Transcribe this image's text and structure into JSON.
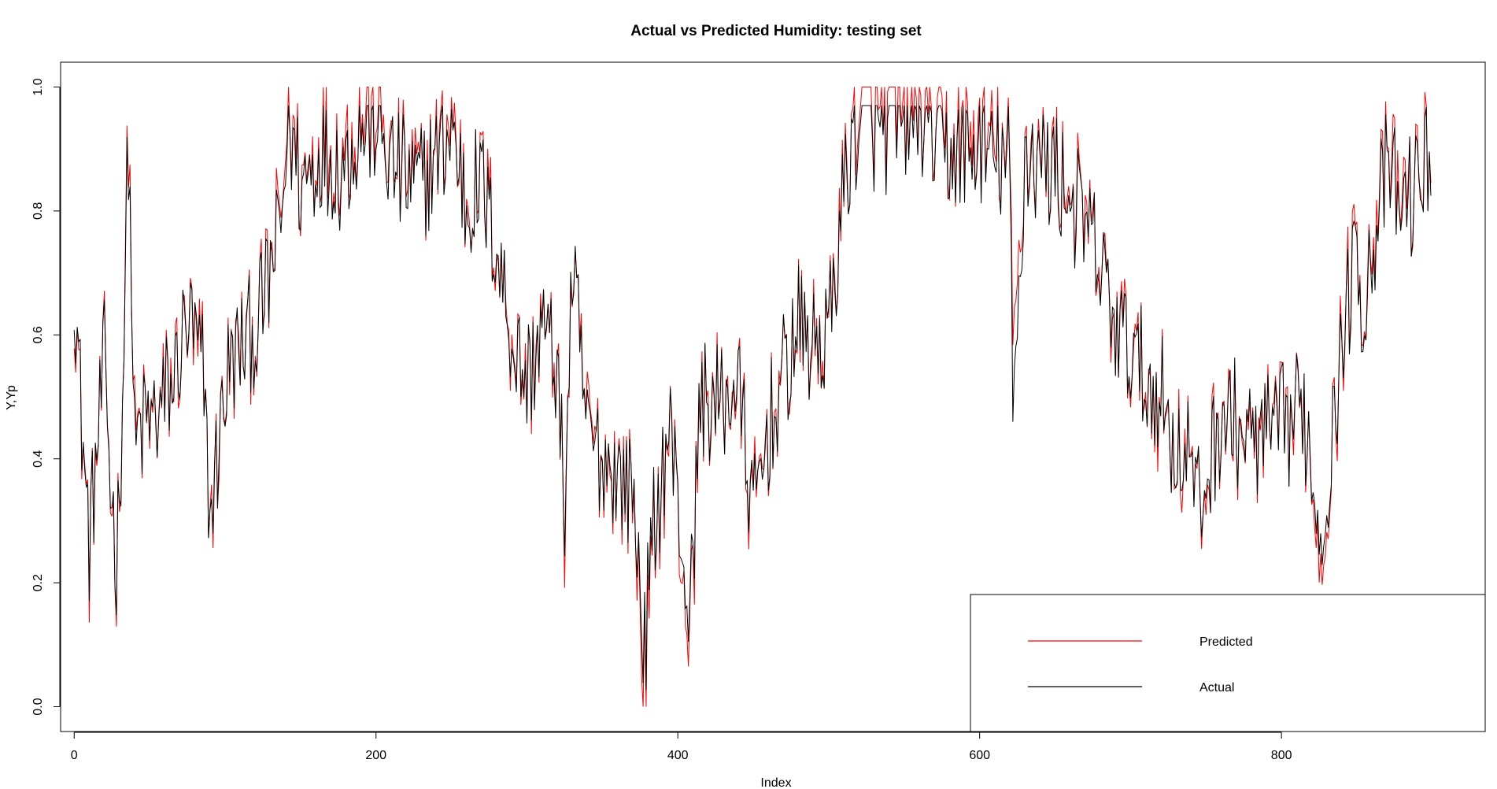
{
  "chart_data": {
    "type": "line",
    "title": "Actual vs Predicted Humidity: testing set",
    "xlabel": "Index",
    "ylabel": "Y,Yp",
    "xlim": [
      -9,
      935
    ],
    "ylim": [
      -0.04,
      1.04
    ],
    "x_ticks": [
      0,
      200,
      400,
      600,
      800
    ],
    "x_tick_labels": [
      "0",
      "200",
      "400",
      "600",
      "800"
    ],
    "y_ticks": [
      0.0,
      0.2,
      0.4,
      0.6,
      0.8,
      1.0
    ],
    "y_tick_labels": [
      "0.0",
      "0.2",
      "0.4",
      "0.6",
      "0.8",
      "1.0"
    ],
    "grid": false,
    "legend_position": "bottom-right",
    "n_points": 900,
    "series": [
      {
        "name": "Predicted",
        "color": "#ff0000",
        "anchors_x": [
          0,
          5,
          10,
          14,
          20,
          25,
          28,
          32,
          36,
          40,
          45,
          55,
          65,
          75,
          85,
          90,
          100,
          110,
          120,
          130,
          138,
          142,
          150,
          165,
          175,
          190,
          200,
          210,
          230,
          250,
          260,
          270,
          280,
          290,
          300,
          310,
          320,
          325,
          330,
          340,
          350,
          360,
          370,
          378,
          385,
          395,
          408,
          415,
          425,
          440,
          450,
          460,
          470,
          480,
          490,
          500,
          510,
          520,
          540,
          560,
          580,
          600,
          620,
          622,
          630,
          650,
          670,
          680,
          690,
          700,
          710,
          720,
          730,
          740,
          745,
          760,
          780,
          800,
          815,
          826,
          835,
          840,
          850,
          855,
          860,
          870,
          880,
          890,
          899
        ],
        "anchors_y": [
          0.68,
          0.45,
          0.25,
          0.38,
          0.55,
          0.32,
          0.22,
          0.5,
          0.95,
          0.42,
          0.45,
          0.47,
          0.52,
          0.62,
          0.55,
          0.3,
          0.52,
          0.58,
          0.6,
          0.7,
          0.82,
          0.98,
          0.85,
          0.92,
          0.88,
          0.95,
          0.97,
          0.88,
          0.85,
          0.95,
          0.82,
          0.85,
          0.75,
          0.6,
          0.52,
          0.62,
          0.55,
          0.3,
          0.7,
          0.45,
          0.4,
          0.38,
          0.35,
          0.05,
          0.3,
          0.45,
          0.1,
          0.5,
          0.48,
          0.52,
          0.3,
          0.45,
          0.52,
          0.62,
          0.58,
          0.6,
          0.85,
          0.97,
          0.95,
          0.97,
          0.9,
          0.92,
          0.88,
          0.55,
          0.9,
          0.88,
          0.78,
          0.7,
          0.62,
          0.58,
          0.52,
          0.5,
          0.42,
          0.4,
          0.3,
          0.48,
          0.42,
          0.45,
          0.48,
          0.25,
          0.45,
          0.6,
          0.75,
          0.65,
          0.75,
          0.88,
          0.82,
          0.85,
          0.92
        ],
        "noise_amplitude": 0.11,
        "ymax_clip": 1.0
      },
      {
        "name": "Actual",
        "color": "#000000",
        "anchors_x": [
          0,
          5,
          10,
          14,
          20,
          25,
          28,
          32,
          36,
          40,
          45,
          55,
          65,
          75,
          85,
          90,
          100,
          110,
          120,
          130,
          138,
          142,
          150,
          165,
          175,
          190,
          200,
          210,
          230,
          250,
          260,
          270,
          280,
          290,
          300,
          310,
          320,
          325,
          330,
          340,
          350,
          360,
          370,
          378,
          385,
          395,
          408,
          415,
          425,
          440,
          450,
          460,
          470,
          480,
          490,
          500,
          510,
          520,
          540,
          560,
          580,
          600,
          620,
          622,
          630,
          650,
          670,
          680,
          690,
          700,
          710,
          720,
          730,
          740,
          745,
          760,
          780,
          800,
          815,
          826,
          835,
          840,
          850,
          855,
          860,
          870,
          880,
          890,
          899
        ],
        "anchors_y": [
          0.7,
          0.45,
          0.27,
          0.38,
          0.55,
          0.33,
          0.24,
          0.5,
          0.92,
          0.42,
          0.45,
          0.47,
          0.52,
          0.62,
          0.55,
          0.3,
          0.52,
          0.58,
          0.6,
          0.7,
          0.8,
          0.95,
          0.84,
          0.9,
          0.86,
          0.93,
          0.95,
          0.87,
          0.84,
          0.93,
          0.81,
          0.84,
          0.74,
          0.6,
          0.52,
          0.62,
          0.55,
          0.32,
          0.7,
          0.45,
          0.4,
          0.38,
          0.35,
          0.1,
          0.31,
          0.45,
          0.14,
          0.5,
          0.48,
          0.52,
          0.31,
          0.45,
          0.52,
          0.62,
          0.58,
          0.6,
          0.84,
          0.95,
          0.93,
          0.95,
          0.89,
          0.9,
          0.87,
          0.45,
          0.89,
          0.87,
          0.77,
          0.7,
          0.62,
          0.58,
          0.52,
          0.5,
          0.42,
          0.4,
          0.31,
          0.48,
          0.42,
          0.45,
          0.48,
          0.27,
          0.45,
          0.6,
          0.74,
          0.64,
          0.74,
          0.86,
          0.8,
          0.84,
          0.9
        ],
        "noise_amplitude": 0.1,
        "ymax_clip": 0.97
      }
    ]
  }
}
